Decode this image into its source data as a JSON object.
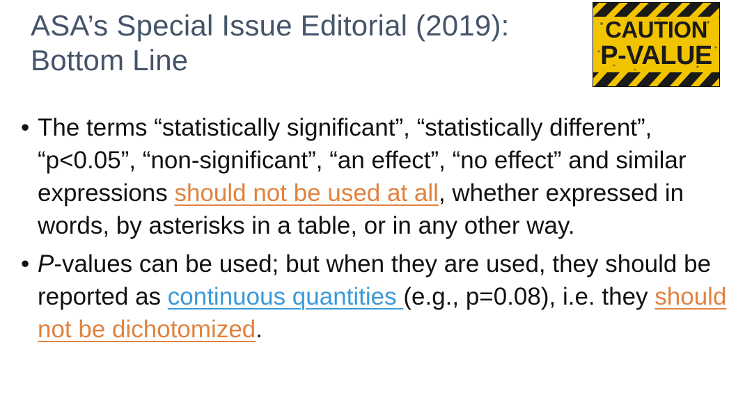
{
  "title": {
    "line1": "ASA’s Special Issue Editorial (2019):",
    "line2": "Bottom Line"
  },
  "badge": {
    "line1": "CAUTION",
    "line2": "P-VALUE",
    "colors": {
      "background": "#f2c400",
      "stripes": "#1a1a1a"
    }
  },
  "bullets": {
    "dot": "•",
    "b1": {
      "before": "The terms “statistically significant”, “statistically different”, “p<0.05”, “non-significant”, “an effect”, “no effect” and similar expressions ",
      "link": "should not be used at all",
      "after": ", whether expressed in words, by asterisks in a table, or in any other way."
    },
    "b2": {
      "italic": "P",
      "part1": "-values can be used; but when they are used, they should be reported as ",
      "link1": "continuous quantities ",
      "part2": "(e.g., p=0.08), i.e. they ",
      "link2": "should not be dichotomized",
      "part3": "."
    }
  },
  "colors": {
    "title": "#44546a",
    "body_text": "#111111",
    "link_orange": "#e0823f",
    "link_blue": "#3a9ad9"
  }
}
